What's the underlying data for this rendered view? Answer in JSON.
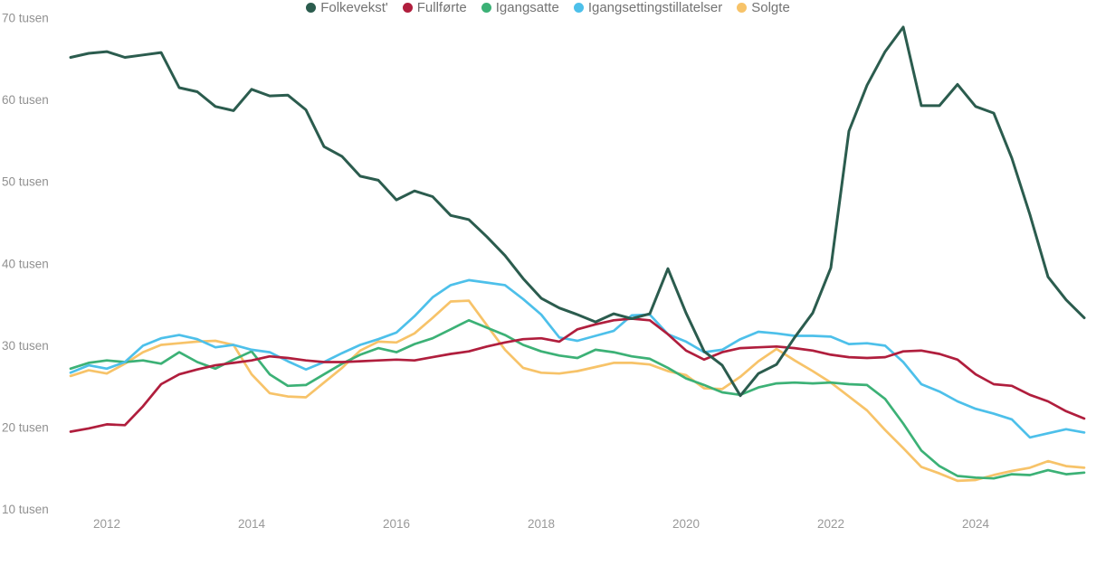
{
  "chart_data": {
    "type": "line",
    "title": "",
    "xlabel": "",
    "ylabel": "",
    "y_tick_suffix": "tusen",
    "y_ticks": [
      10,
      20,
      30,
      40,
      50,
      60,
      70
    ],
    "x_ticks": [
      2012,
      2014,
      2016,
      2018,
      2020,
      2022,
      2024
    ],
    "x_start": 2011.5,
    "x_step": 0.25,
    "ylim": [
      10,
      70
    ],
    "xlim": [
      2011.5,
      2025.5
    ],
    "grid": false,
    "legend_position": "bottom-center",
    "background_color": "#ffffff",
    "axis_text_color": "#919191",
    "legend_text_color": "#737373",
    "series": [
      {
        "name": "Solgte",
        "color": "#f7c369",
        "line_width": 2.7,
        "values": [
          26.3,
          27.0,
          26.6,
          27.8,
          29.2,
          30.1,
          30.3,
          30.5,
          30.6,
          30.1,
          26.5,
          24.2,
          23.8,
          23.7,
          25.5,
          27.3,
          29.4,
          30.5,
          30.4,
          31.5,
          33.4,
          35.4,
          35.5,
          32.5,
          29.5,
          27.3,
          26.7,
          26.6,
          26.9,
          27.4,
          27.9,
          27.9,
          27.7,
          26.9,
          26.4,
          24.8,
          24.7,
          26.2,
          28.1,
          29.6,
          28.2,
          26.9,
          25.5,
          23.8,
          22.1,
          19.7,
          17.5,
          15.2,
          14.4,
          13.5,
          13.6,
          14.2,
          14.7,
          15.1,
          15.9,
          15.3,
          15.1
        ]
      },
      {
        "name": "Igangsatte",
        "color": "#3cb176",
        "line_width": 2.7,
        "values": [
          27.2,
          27.9,
          28.2,
          28.0,
          28.2,
          27.8,
          29.2,
          28.0,
          27.2,
          28.3,
          29.3,
          26.5,
          25.1,
          25.2,
          26.5,
          27.8,
          28.9,
          29.7,
          29.2,
          30.2,
          30.9,
          32.0,
          33.1,
          32.2,
          31.3,
          30.1,
          29.3,
          28.8,
          28.5,
          29.5,
          29.2,
          28.7,
          28.4,
          27.3,
          26.0,
          25.2,
          24.3,
          24.0,
          24.9,
          25.4,
          25.5,
          25.4,
          25.5,
          25.3,
          25.2,
          23.5,
          20.5,
          17.2,
          15.3,
          14.1,
          13.9,
          13.8,
          14.3,
          14.2,
          14.8,
          14.3,
          14.5
        ]
      },
      {
        "name": "Igangsettingstillatelser",
        "color": "#4dc0ea",
        "line_width": 2.7,
        "values": [
          26.7,
          27.6,
          27.2,
          28.0,
          30.0,
          30.9,
          31.3,
          30.8,
          29.8,
          30.1,
          29.5,
          29.2,
          28.1,
          27.1,
          28.0,
          29.1,
          30.1,
          30.8,
          31.6,
          33.6,
          35.9,
          37.4,
          38.0,
          37.7,
          37.4,
          35.7,
          33.8,
          31.0,
          30.6,
          31.2,
          31.8,
          33.7,
          33.8,
          31.4,
          30.5,
          29.2,
          29.5,
          30.8,
          31.7,
          31.5,
          31.2,
          31.2,
          31.1,
          30.2,
          30.3,
          30.0,
          28.0,
          25.3,
          24.4,
          23.2,
          22.3,
          21.7,
          21.0,
          18.8,
          19.3,
          19.8,
          19.4
        ]
      },
      {
        "name": "Fullførte",
        "color": "#b01e3d",
        "line_width": 2.7,
        "values": [
          19.5,
          19.9,
          20.4,
          20.3,
          22.6,
          25.3,
          26.5,
          27.1,
          27.6,
          27.9,
          28.2,
          28.7,
          28.5,
          28.2,
          28.0,
          28.0,
          28.1,
          28.2,
          28.3,
          28.2,
          28.6,
          29.0,
          29.3,
          29.9,
          30.4,
          30.8,
          30.9,
          30.5,
          32.0,
          32.6,
          33.1,
          33.3,
          33.1,
          31.4,
          29.4,
          28.3,
          29.2,
          29.7,
          29.8,
          29.9,
          29.7,
          29.4,
          28.9,
          28.6,
          28.5,
          28.6,
          29.3,
          29.4,
          29.0,
          28.3,
          26.5,
          25.3,
          25.1,
          24.0,
          23.2,
          22.0,
          21.1
        ]
      },
      {
        "name": "Folkevekst'",
        "color": "#2b5c4e",
        "line_width": 3,
        "values": [
          65.2,
          65.7,
          65.9,
          65.2,
          65.5,
          65.8,
          61.5,
          61.0,
          59.2,
          58.7,
          61.3,
          60.5,
          60.6,
          58.8,
          54.3,
          53.1,
          50.7,
          50.2,
          47.8,
          48.9,
          48.2,
          45.9,
          45.4,
          43.3,
          41.0,
          38.2,
          35.8,
          34.6,
          33.8,
          32.9,
          33.9,
          33.3,
          33.9,
          39.4,
          34.0,
          29.3,
          27.6,
          23.9,
          26.6,
          27.7,
          31.0,
          34.0,
          39.5,
          56.2,
          61.8,
          65.9,
          68.9,
          59.3,
          59.3,
          61.9,
          59.2,
          58.4,
          52.9,
          46.0,
          38.4,
          35.6,
          33.4
        ]
      }
    ],
    "legend_order": [
      "Folkevekst'",
      "Fullførte",
      "Igangsatte",
      "Igangsettingstillatelser",
      "Solgte"
    ]
  }
}
